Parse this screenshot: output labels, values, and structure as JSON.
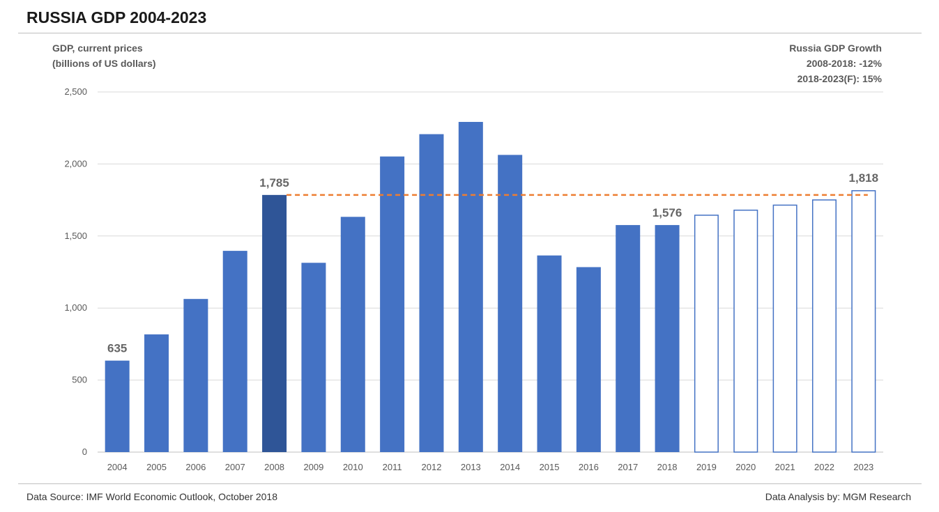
{
  "header": {
    "title": "RUSSIA GDP 2004-2023"
  },
  "axis_title": {
    "line1": "GDP, current prices",
    "line2": "(billions of US dollars)"
  },
  "growth_box": {
    "line1": "Russia GDP Growth",
    "line2": "2008-2018: -12%",
    "line3": "2018-2023(F): 15%"
  },
  "footer": {
    "source": "Data Source: IMF World Economic Outlook, October 2018",
    "analysis": "Data Analysis by: MGM Research"
  },
  "colors": {
    "bar": "#4472c4",
    "bar_highlight": "#2f5597",
    "forecast_outline": "#4472c4",
    "reference_line": "#ed7d31",
    "grid": "#d9d9d9"
  },
  "chart_data": {
    "type": "bar",
    "title": "RUSSIA GDP 2004-2023",
    "ylabel": "GDP, current prices (billions of US dollars)",
    "xlabel": "",
    "categories": [
      "2004",
      "2005",
      "2006",
      "2007",
      "2008",
      "2009",
      "2010",
      "2011",
      "2012",
      "2013",
      "2014",
      "2015",
      "2016",
      "2017",
      "2018",
      "2019",
      "2020",
      "2021",
      "2022",
      "2023"
    ],
    "values": [
      635,
      817,
      1063,
      1397,
      1785,
      1314,
      1633,
      2052,
      2207,
      2292,
      2063,
      1365,
      1284,
      1576,
      1576,
      1648,
      1683,
      1718,
      1754,
      1818
    ],
    "forecast_from": "2019",
    "highlight": "2008",
    "ylim": [
      0,
      2500
    ],
    "yticks": [
      0,
      500,
      1000,
      1500,
      2000,
      2500
    ],
    "ytick_labels": [
      "0",
      "500",
      "1,000",
      "1,500",
      "2,000",
      "2,500"
    ],
    "data_labels": [
      {
        "category": "2004",
        "text": "635"
      },
      {
        "category": "2008",
        "text": "1,785"
      },
      {
        "category": "2018",
        "text": "1,576"
      },
      {
        "category": "2023",
        "text": "1,818"
      }
    ],
    "reference_line": {
      "value": 1785,
      "from": "2008",
      "to": "2023",
      "style": "dashed"
    },
    "grid": true,
    "legend": "none"
  }
}
